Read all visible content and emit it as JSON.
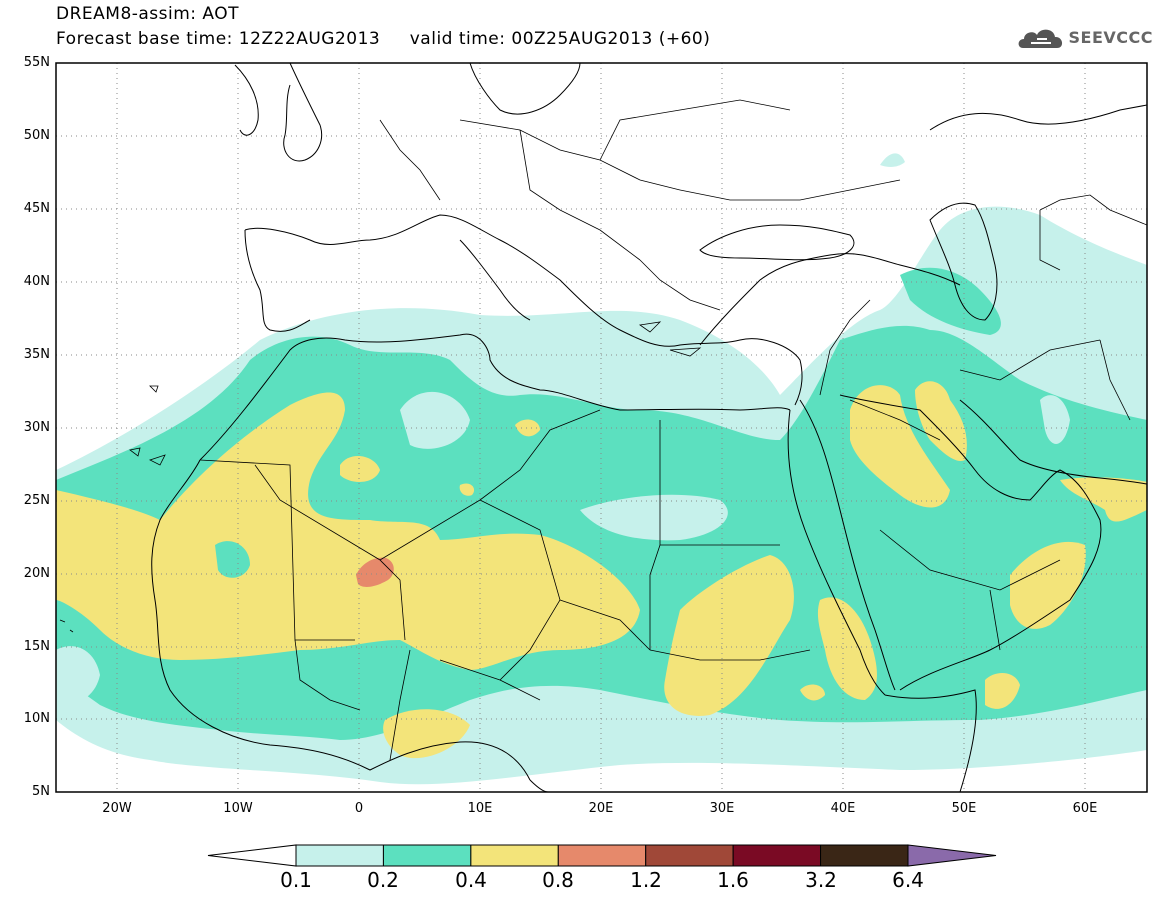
{
  "title": {
    "line1": "DREAM8-assim: AOT",
    "line2": "Forecast base time: 12Z22AUG2013     valid time: 00Z25AUG2013 (+60)"
  },
  "logo": {
    "text": "SEEVCCC",
    "icon": "cloud-logo-icon"
  },
  "axes": {
    "lat_labels": [
      "55N",
      "50N",
      "45N",
      "40N",
      "35N",
      "30N",
      "25N",
      "20N",
      "15N",
      "10N",
      "5N"
    ],
    "lon_labels": [
      "20W",
      "10W",
      "0",
      "10E",
      "20E",
      "30E",
      "40E",
      "50E",
      "60E"
    ],
    "lon_range": [
      -25,
      65
    ],
    "lat_range": [
      5,
      55
    ],
    "grid": "dotted"
  },
  "colorbar": {
    "labels": [
      "0.1",
      "0.2",
      "0.4",
      "0.8",
      "1.2",
      "1.6",
      "3.2",
      "6.4"
    ],
    "colors": [
      "#ffffff",
      "#c6f1eb",
      "#5ce0bf",
      "#f3e47a",
      "#e6896b",
      "#a04838",
      "#7a0a24",
      "#3a2616",
      "#8a6aaa"
    ]
  },
  "map": {
    "field": "Aerosol optical thickness",
    "colors": {
      "lt01": "#ffffff",
      "c01_02": "#c6f1eb",
      "c02_04": "#5ce0bf",
      "c04_08": "#f3e47a",
      "c08_12": "#e6896b"
    }
  }
}
